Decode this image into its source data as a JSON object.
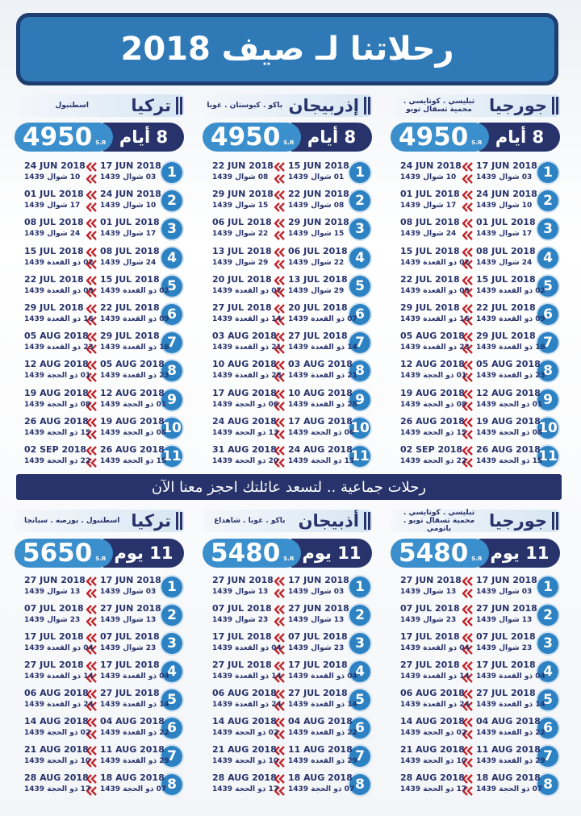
{
  "title": "رحلاتنا لـ صيف 2018",
  "top": {
    "packages": [
      {
        "name": "جورجيا",
        "cities": "تبليسي . كوتايسي . محمية تسقال توبو",
        "duration": "8 أيام",
        "price": 4950,
        "currency": "S.R",
        "trips": [
          {
            "no": 1,
            "dep": "17 JUN 2018",
            "dep_h": "03 شوال 1439",
            "ret": "24 JUN 2018",
            "ret_h": "10 شوال 1439"
          },
          {
            "no": 2,
            "dep": "24 JUN 2018",
            "dep_h": "10 شوال 1439",
            "ret": "01 JUL 2018",
            "ret_h": "17 شوال 1439"
          },
          {
            "no": 3,
            "dep": "01 JUL 2018",
            "dep_h": "17 شوال 1439",
            "ret": "08 JUL 2018",
            "ret_h": "24 شوال 1439"
          },
          {
            "no": 4,
            "dep": "08 JUL 2018",
            "dep_h": "24 شوال 1439",
            "ret": "15 JUL 2018",
            "ret_h": "02 ذو القعدة 1439"
          },
          {
            "no": 5,
            "dep": "15 JUL 2018",
            "dep_h": "02 ذو القعدة 1439",
            "ret": "22 JUL 2018",
            "ret_h": "09 ذو القعدة 1439"
          },
          {
            "no": 6,
            "dep": "22 JUL 2018",
            "dep_h": "09 ذو القعدة 1439",
            "ret": "29 JUL 2018",
            "ret_h": "16 ذو القعدة 1439"
          },
          {
            "no": 7,
            "dep": "29 JUL 2018",
            "dep_h": "16 ذو القعدة 1439",
            "ret": "05 AUG 2018",
            "ret_h": "23 ذو القعدة 1439"
          },
          {
            "no": 8,
            "dep": "05 AUG 2018",
            "dep_h": "23 ذو القعدة 1439",
            "ret": "12 AUG 2018",
            "ret_h": "01 ذو الحجة 1439"
          },
          {
            "no": 9,
            "dep": "12 AUG 2018",
            "dep_h": "01 ذو الحجة 1439",
            "ret": "19 AUG 2018",
            "ret_h": "08 ذو الحجة 1439"
          },
          {
            "no": 10,
            "dep": "19 AUG 2018",
            "dep_h": "08 ذو الحجة 1439",
            "ret": "26 AUG 2018",
            "ret_h": "15 ذو الحجة 1439"
          },
          {
            "no": 11,
            "dep": "26 AUG 2018",
            "dep_h": "15 ذو الحجة 1439",
            "ret": "02 SEP 2018",
            "ret_h": "22 ذو الحجة 1439"
          }
        ]
      },
      {
        "name": "إذربيجان",
        "cities": "باكو . كبوستان . غوبا",
        "duration": "8 أيام",
        "price": 4950,
        "currency": "S.R",
        "trips": [
          {
            "no": 1,
            "dep": "15 JUN 2018",
            "dep_h": "01 شوال 1439",
            "ret": "22 JUN 2018",
            "ret_h": "08 شوال 1439"
          },
          {
            "no": 2,
            "dep": "22 JUN 2018",
            "dep_h": "08 شوال 1439",
            "ret": "29 JUN 2018",
            "ret_h": "15 شوال 1439"
          },
          {
            "no": 3,
            "dep": "29 JUN 2018",
            "dep_h": "15 شوال 1439",
            "ret": "06 JUL 2018",
            "ret_h": "22 شوال 1439"
          },
          {
            "no": 4,
            "dep": "06 JUL 2018",
            "dep_h": "22 شوال 1439",
            "ret": "13 JUL 2018",
            "ret_h": "29 شوال 1439"
          },
          {
            "no": 5,
            "dep": "13 JUL 2018",
            "dep_h": "29 شوال 1439",
            "ret": "20 JUL 2018",
            "ret_h": "07 ذو القعدة 1439"
          },
          {
            "no": 6,
            "dep": "20 JUL 2018",
            "dep_h": "07 ذو القعدة 1439",
            "ret": "27 JUL 2018",
            "ret_h": "14 ذو القعدة 1439"
          },
          {
            "no": 7,
            "dep": "27 JUL 2018",
            "dep_h": "14 ذو القعدة 1439",
            "ret": "03 AUG 2018",
            "ret_h": "21 ذو القعدة 1439"
          },
          {
            "no": 8,
            "dep": "03 AUG 2018",
            "dep_h": "21 ذو القعدة 1439",
            "ret": "10 AUG 2018",
            "ret_h": "28 ذو القعدة 1439"
          },
          {
            "no": 9,
            "dep": "10 AUG 2018",
            "dep_h": "28 ذو القعدة 1439",
            "ret": "17 AUG 2018",
            "ret_h": "06 ذو الحجة 1439"
          },
          {
            "no": 10,
            "dep": "17 AUG 2018",
            "dep_h": "06 ذو الحجة 1439",
            "ret": "24 AUG 2018",
            "ret_h": "13 ذو الحجة 1439"
          },
          {
            "no": 11,
            "dep": "24 AUG 2018",
            "dep_h": "13 ذو الحجة 1439",
            "ret": "31 AUG 2018",
            "ret_h": "20 ذو الحجة 1439"
          }
        ]
      },
      {
        "name": "تركيا",
        "cities": "اسطنبول",
        "duration": "8 أيام",
        "price": 4950,
        "currency": "S.R",
        "trips": [
          {
            "no": 1,
            "dep": "17 JUN 2018",
            "dep_h": "03 شوال 1439",
            "ret": "24 JUN 2018",
            "ret_h": "10 شوال 1439"
          },
          {
            "no": 2,
            "dep": "24 JUN 2018",
            "dep_h": "10 شوال 1439",
            "ret": "01 JUL 2018",
            "ret_h": "17 شوال 1439"
          },
          {
            "no": 3,
            "dep": "01 JUL 2018",
            "dep_h": "17 شوال 1439",
            "ret": "08 JUL 2018",
            "ret_h": "24 شوال 1439"
          },
          {
            "no": 4,
            "dep": "08 JUL 2018",
            "dep_h": "24 شوال 1439",
            "ret": "15 JUL 2018",
            "ret_h": "02 ذو القعدة 1439"
          },
          {
            "no": 5,
            "dep": "15 JUL 2018",
            "dep_h": "02 ذو القعدة 1439",
            "ret": "22 JUL 2018",
            "ret_h": "09 ذو القعدة 1439"
          },
          {
            "no": 6,
            "dep": "22 JUL 2018",
            "dep_h": "09 ذو القعدة 1439",
            "ret": "29 JUL 2018",
            "ret_h": "16 ذو القعدة 1439"
          },
          {
            "no": 7,
            "dep": "29 JUL 2018",
            "dep_h": "16 ذو القعدة 1439",
            "ret": "05 AUG 2018",
            "ret_h": "23 ذو القعدة 1439"
          },
          {
            "no": 8,
            "dep": "05 AUG 2018",
            "dep_h": "23 ذو القعدة 1439",
            "ret": "12 AUG 2018",
            "ret_h": "01 ذو الحجة 1439"
          },
          {
            "no": 9,
            "dep": "12 AUG 2018",
            "dep_h": "01 ذو الحجة 1439",
            "ret": "19 AUG 2018",
            "ret_h": "08 ذو الحجة 1439"
          },
          {
            "no": 10,
            "dep": "19 AUG 2018",
            "dep_h": "08 ذو الحجة 1439",
            "ret": "26 AUG 2018",
            "ret_h": "15 ذو الحجة 1439"
          },
          {
            "no": 11,
            "dep": "26 AUG 2018",
            "dep_h": "15 ذو الحجة 1439",
            "ret": "02 SEP 2018",
            "ret_h": "22 ذو الحجة 1439"
          }
        ]
      }
    ]
  },
  "banner": "رحلات جماعية .. لتسعد عائلتك احجز معنا الآن",
  "bottom": {
    "packages": [
      {
        "name": "جورجيا",
        "cities": "تبليسي . كوتايسي . محمية تسقال توبو . باتومي",
        "duration": "11 يوم",
        "price": 5480,
        "currency": "S.R",
        "trips": [
          {
            "no": 1,
            "dep": "17 JUN 2018",
            "dep_h": "03 شوال 1439",
            "ret": "27 JUN 2018",
            "ret_h": "13 شوال 1439"
          },
          {
            "no": 2,
            "dep": "27 JUN 2018",
            "dep_h": "13 شوال 1439",
            "ret": "07 JUL 2018",
            "ret_h": "23 شوال 1439"
          },
          {
            "no": 3,
            "dep": "07 JUL 2018",
            "dep_h": "23 شوال 1439",
            "ret": "17 JUL 2018",
            "ret_h": "04 ذو القعدة 1439"
          },
          {
            "no": 4,
            "dep": "17 JUL 2018",
            "dep_h": "04 ذو القعدة 1439",
            "ret": "27 JUL 2018",
            "ret_h": "14 ذو القعدة 1439"
          },
          {
            "no": 5,
            "dep": "27 JUL 2018",
            "dep_h": "14 ذو القعدة 1439",
            "ret": "06 AUG 2018",
            "ret_h": "24 ذو القعدة 1439"
          },
          {
            "no": 6,
            "dep": "04 AUG 2018",
            "dep_h": "22 ذو القعدة 1439",
            "ret": "14 AUG 2018",
            "ret_h": "02 ذو الحجة 1439"
          },
          {
            "no": 7,
            "dep": "11 AUG 2018",
            "dep_h": "29 ذو القعدة 1439",
            "ret": "21 AUG 2018",
            "ret_h": "10 ذو الحجة 1439"
          },
          {
            "no": 8,
            "dep": "18 AUG 2018",
            "dep_h": "07 ذو الحجة 1439",
            "ret": "28 AUG 2018",
            "ret_h": "17 ذو الحجة 1439"
          }
        ]
      },
      {
        "name": "أذبيجان",
        "cities": "باكو . غوبا . شاهداغ",
        "duration": "11 يوم",
        "price": 5480,
        "currency": "S.R",
        "trips": [
          {
            "no": 1,
            "dep": "17 JUN 2018",
            "dep_h": "03 شوال 1439",
            "ret": "27 JUN 2018",
            "ret_h": "13 شوال 1439"
          },
          {
            "no": 2,
            "dep": "27 JUN 2018",
            "dep_h": "13 شوال 1439",
            "ret": "07 JUL 2018",
            "ret_h": "23 شوال 1439"
          },
          {
            "no": 3,
            "dep": "07 JUL 2018",
            "dep_h": "23 شوال 1439",
            "ret": "17 JUL 2018",
            "ret_h": "04 ذو القعدة 1439"
          },
          {
            "no": 4,
            "dep": "17 JUL 2018",
            "dep_h": "04 ذو القعدة 1439",
            "ret": "27 JUL 2018",
            "ret_h": "14 ذو القعدة 1439"
          },
          {
            "no": 5,
            "dep": "27 JUL 2018",
            "dep_h": "14 ذو القعدة 1439",
            "ret": "06 AUG 2018",
            "ret_h": "24 ذو القعدة 1439"
          },
          {
            "no": 6,
            "dep": "04 AUG 2018",
            "dep_h": "22 ذو القعدة 1439",
            "ret": "14 AUG 2018",
            "ret_h": "02 ذو الحجة 1439"
          },
          {
            "no": 7,
            "dep": "11 AUG 2018",
            "dep_h": "29 ذو القعدة 1439",
            "ret": "21 AUG 2018",
            "ret_h": "10 ذو الحجة 1439"
          },
          {
            "no": 8,
            "dep": "18 AUG 2018",
            "dep_h": "07 ذو الحجة 1439",
            "ret": "28 AUG 2018",
            "ret_h": "17 ذو الحجة 1439"
          }
        ]
      },
      {
        "name": "تركيا",
        "cities": "اسطنبول . بورصه . سبانجا",
        "duration": "11 يوم",
        "price": 5650,
        "currency": "S.R",
        "trips": [
          {
            "no": 1,
            "dep": "17 JUN 2018",
            "dep_h": "03 شوال 1439",
            "ret": "27 JUN 2018",
            "ret_h": "13 شوال 1439"
          },
          {
            "no": 2,
            "dep": "27 JUN 2018",
            "dep_h": "13 شوال 1439",
            "ret": "07 JUL 2018",
            "ret_h": "23 شوال 1439"
          },
          {
            "no": 3,
            "dep": "07 JUL 2018",
            "dep_h": "23 شوال 1439",
            "ret": "17 JUL 2018",
            "ret_h": "04 ذو القعدة 1439"
          },
          {
            "no": 4,
            "dep": "17 JUL 2018",
            "dep_h": "04 ذو القعدة 1439",
            "ret": "27 JUL 2018",
            "ret_h": "14 ذو القعدة 1439"
          },
          {
            "no": 5,
            "dep": "27 JUL 2018",
            "dep_h": "14 ذو القعدة 1439",
            "ret": "06 AUG 2018",
            "ret_h": "24 ذو القعدة 1439"
          },
          {
            "no": 6,
            "dep": "04 AUG 2018",
            "dep_h": "22 ذو القعدة 1439",
            "ret": "14 AUG 2018",
            "ret_h": "02 ذو الحجة 1439"
          },
          {
            "no": 7,
            "dep": "11 AUG 2018",
            "dep_h": "29 ذو القعدة 1439",
            "ret": "21 AUG 2018",
            "ret_h": "10 ذو الحجة 1439"
          },
          {
            "no": 8,
            "dep": "18 AUG 2018",
            "dep_h": "07 ذو الحجة 1439",
            "ret": "28 AUG 2018",
            "ret_h": "17 ذو الحجة 1439"
          }
        ]
      }
    ]
  }
}
